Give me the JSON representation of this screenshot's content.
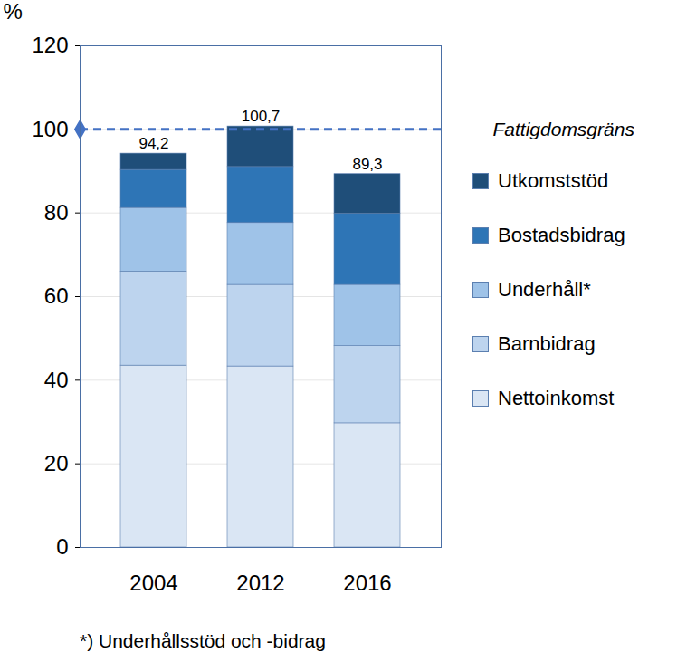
{
  "chart_data": {
    "type": "bar",
    "stacked": true,
    "categories": [
      "2004",
      "2012",
      "2016"
    ],
    "series": [
      {
        "name": "Nettoinkomst",
        "color": "#dae6f4",
        "values": [
          43.5,
          43.3,
          29.7
        ]
      },
      {
        "name": "Barnbidrag",
        "color": "#bdd4ee",
        "values": [
          22.5,
          19.5,
          18.5
        ]
      },
      {
        "name": "Underhåll*",
        "color": "#9fc3e8",
        "values": [
          15.2,
          14.8,
          14.6
        ]
      },
      {
        "name": "Bostadsbidrag",
        "color": "#2e75b6",
        "values": [
          9.1,
          13.4,
          17.0
        ]
      },
      {
        "name": "Utkomststöd",
        "color": "#1f4e79",
        "values": [
          3.9,
          9.7,
          9.5
        ]
      }
    ],
    "totals": [
      94.2,
      100.7,
      89.3
    ],
    "total_labels": [
      "94,2",
      "100,7",
      "89,3"
    ],
    "reference_line": {
      "value": 100,
      "label": "Fattigdomsgräns",
      "color": "#4472c4",
      "line_style": "dashed"
    },
    "ylabel": "%",
    "footnote": "*) Underhållsstöd och -bidrag",
    "ylim": [
      0,
      120
    ],
    "yticks": [
      0,
      20,
      40,
      60,
      80,
      100,
      120
    ],
    "grid": true,
    "legend": "right",
    "data_labels": false
  }
}
